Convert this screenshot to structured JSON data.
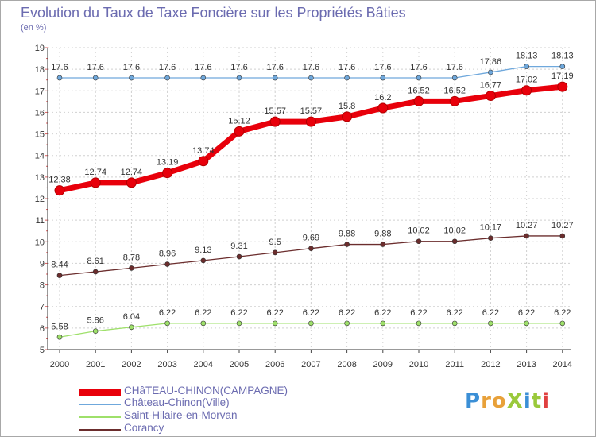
{
  "title": "Evolution du Taux de Taxe Foncière sur les Propriétés Bâties",
  "unit": "(en %)",
  "logo": "ProXiti",
  "chart_data": {
    "type": "line",
    "x": [
      "2000",
      "2001",
      "2002",
      "2003",
      "2004",
      "2005",
      "2006",
      "2007",
      "2008",
      "2009",
      "2010",
      "2011",
      "2012",
      "2013",
      "2014"
    ],
    "ylim": [
      5,
      19
    ],
    "yticks": [
      "5",
      "6",
      "7",
      "8",
      "9",
      "10",
      "11",
      "12",
      "13",
      "14",
      "15",
      "16",
      "17",
      "18",
      "19"
    ],
    "grid": true,
    "series": [
      {
        "name": "CHâTEAU-CHINON(CAMPAGNE)",
        "color": "#e8000b",
        "values": [
          12.38,
          12.74,
          12.74,
          13.19,
          13.74,
          15.12,
          15.57,
          15.57,
          15.8,
          16.2,
          16.52,
          16.52,
          16.77,
          17.02,
          17.19
        ],
        "labels": [
          "12.38",
          "12.74",
          "12.74",
          "13.19",
          "13.74",
          "15.12",
          "15.57",
          "15.57",
          "15.8",
          "16.2",
          "16.52",
          "16.52",
          "16.77",
          "17.02",
          "17.19"
        ]
      },
      {
        "name": "Château-Chinon(Ville)",
        "color": "#6fa8dc",
        "values": [
          17.6,
          17.6,
          17.6,
          17.6,
          17.6,
          17.6,
          17.6,
          17.6,
          17.6,
          17.6,
          17.6,
          17.6,
          17.86,
          18.13,
          18.13
        ],
        "labels": [
          "17.6",
          "17.6",
          "17.6",
          "17.6",
          "17.6",
          "17.6",
          "17.6",
          "17.6",
          "17.6",
          "17.6",
          "17.6",
          "17.6",
          "17.86",
          "18.13",
          "18.13"
        ]
      },
      {
        "name": "Saint-Hilaire-en-Morvan",
        "color": "#9ee06a",
        "values": [
          5.58,
          5.86,
          6.04,
          6.22,
          6.22,
          6.22,
          6.22,
          6.22,
          6.22,
          6.22,
          6.22,
          6.22,
          6.22,
          6.22,
          6.22
        ],
        "labels": [
          "5.58",
          "5.86",
          "6.04",
          "6.22",
          "6.22",
          "6.22",
          "6.22",
          "6.22",
          "6.22",
          "6.22",
          "6.22",
          "6.22",
          "6.22",
          "6.22",
          "6.22"
        ]
      },
      {
        "name": "Corancy",
        "color": "#6b2d2d",
        "values": [
          8.44,
          8.61,
          8.78,
          8.96,
          9.13,
          9.31,
          9.5,
          9.69,
          9.88,
          9.88,
          10.02,
          10.02,
          10.17,
          10.27,
          10.27
        ],
        "labels": [
          "8.44",
          "8.61",
          "8.78",
          "8.96",
          "9.13",
          "9.31",
          "9.5",
          "9.69",
          "9.88",
          "9.88",
          "10.02",
          "10.02",
          "10.17",
          "10.27",
          "10.27"
        ]
      }
    ]
  }
}
